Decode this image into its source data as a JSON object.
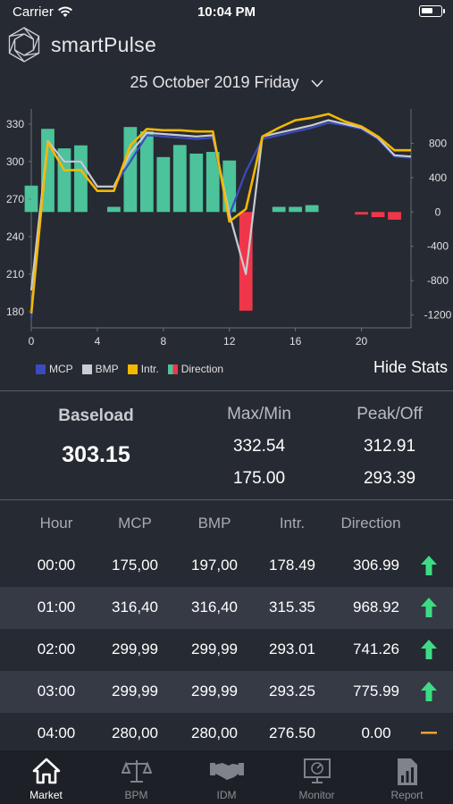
{
  "status_bar": {
    "carrier": "Carrier",
    "time": "10:04 PM"
  },
  "app": {
    "name": "smartPulse"
  },
  "date_selector": {
    "label": "25 October 2019 Friday"
  },
  "colors": {
    "mcp": "#3b4bbf",
    "bmp": "#c9ccd2",
    "intr": "#f5b800",
    "direction_pos": "#4cc39a",
    "direction_neg": "#f0364a"
  },
  "chart_data": {
    "type": "bar+line",
    "x": [
      0,
      1,
      2,
      3,
      4,
      5,
      6,
      7,
      8,
      9,
      10,
      11,
      12,
      13,
      14,
      15,
      16,
      17,
      18,
      19,
      20,
      21,
      22,
      23
    ],
    "xticks": [
      "0",
      "4",
      "8",
      "12",
      "16",
      "20"
    ],
    "xtick_values": [
      0,
      4,
      8,
      12,
      16,
      20
    ],
    "left_axis": {
      "ticks": [
        "180",
        "210",
        "240",
        "270",
        "300",
        "330"
      ],
      "tick_values": [
        180,
        210,
        240,
        270,
        300,
        330
      ],
      "range": [
        167,
        342
      ]
    },
    "right_axis": {
      "ticks": [
        "-1200",
        "-800",
        "-400",
        "0",
        "400",
        "800"
      ],
      "tick_values": [
        -1200,
        -800,
        -400,
        0,
        400,
        800
      ],
      "range": [
        -1350,
        1200
      ]
    },
    "series": [
      {
        "name": "MCP",
        "axis": "left",
        "values": [
          175,
          316.4,
          299.99,
          299.99,
          280,
          280,
          300,
          321,
          320,
          319,
          318,
          319,
          257,
          292,
          318,
          321,
          324,
          327,
          331,
          329,
          326,
          318,
          304,
          303
        ]
      },
      {
        "name": "BMP",
        "axis": "left",
        "values": [
          197,
          316.4,
          299.99,
          299.99,
          280,
          280,
          307,
          323,
          322,
          321,
          320,
          321,
          258,
          210,
          320,
          323,
          326,
          329,
          333,
          330,
          327,
          319,
          305,
          304
        ]
      },
      {
        "name": "Intr.",
        "axis": "left",
        "values": [
          178.49,
          315.35,
          293.01,
          293.25,
          276.5,
          276.5,
          313,
          326,
          325,
          325,
          324,
          324,
          252,
          262,
          320,
          327,
          333,
          335,
          338,
          332,
          328,
          320,
          309,
          309
        ]
      },
      {
        "name": "Direction",
        "axis": "right",
        "values": [
          306.99,
          968.92,
          741.26,
          775.99,
          0,
          60,
          990,
          940,
          640,
          780,
          680,
          700,
          600,
          -1150,
          0,
          60,
          60,
          80,
          0,
          0,
          -30,
          -60,
          -90,
          0
        ]
      }
    ]
  },
  "legend": [
    {
      "label": "MCP",
      "color": "#3b4bbf"
    },
    {
      "label": "BMP",
      "color": "#c9ccd2"
    },
    {
      "label": "Intr.",
      "color": "#f5b800"
    },
    {
      "label": "Direction",
      "color": "#f0364a"
    }
  ],
  "hide_stats_label": "Hide Stats",
  "stats": {
    "baseload_label": "Baseload",
    "baseload_value": "303.15",
    "maxmin_label": "Max/Min",
    "max_value": "332.54",
    "min_value": "175.00",
    "peakoff_label": "Peak/Off",
    "peak_value": "312.91",
    "off_value": "293.39"
  },
  "table": {
    "headers": [
      "Hour",
      "MCP",
      "BMP",
      "Intr.",
      "Direction"
    ],
    "rows": [
      {
        "hour": "00:00",
        "mcp": "175,00",
        "bmp": "197,00",
        "intr": "178.49",
        "direction": "306.99",
        "trend": "up"
      },
      {
        "hour": "01:00",
        "mcp": "316,40",
        "bmp": "316,40",
        "intr": "315.35",
        "direction": "968.92",
        "trend": "up"
      },
      {
        "hour": "02:00",
        "mcp": "299,99",
        "bmp": "299,99",
        "intr": "293.01",
        "direction": "741.26",
        "trend": "up"
      },
      {
        "hour": "03:00",
        "mcp": "299,99",
        "bmp": "299,99",
        "intr": "293.25",
        "direction": "775.99",
        "trend": "up"
      },
      {
        "hour": "04:00",
        "mcp": "280,00",
        "bmp": "280,00",
        "intr": "276.50",
        "direction": "0.00",
        "trend": "flat"
      }
    ]
  },
  "tabs": [
    {
      "label": "Market",
      "icon": "home-icon",
      "active": true
    },
    {
      "label": "BPM",
      "icon": "scales-icon",
      "active": false
    },
    {
      "label": "IDM",
      "icon": "handshake-icon",
      "active": false
    },
    {
      "label": "Monitor",
      "icon": "monitor-icon",
      "active": false
    },
    {
      "label": "Report",
      "icon": "report-icon",
      "active": false
    }
  ]
}
